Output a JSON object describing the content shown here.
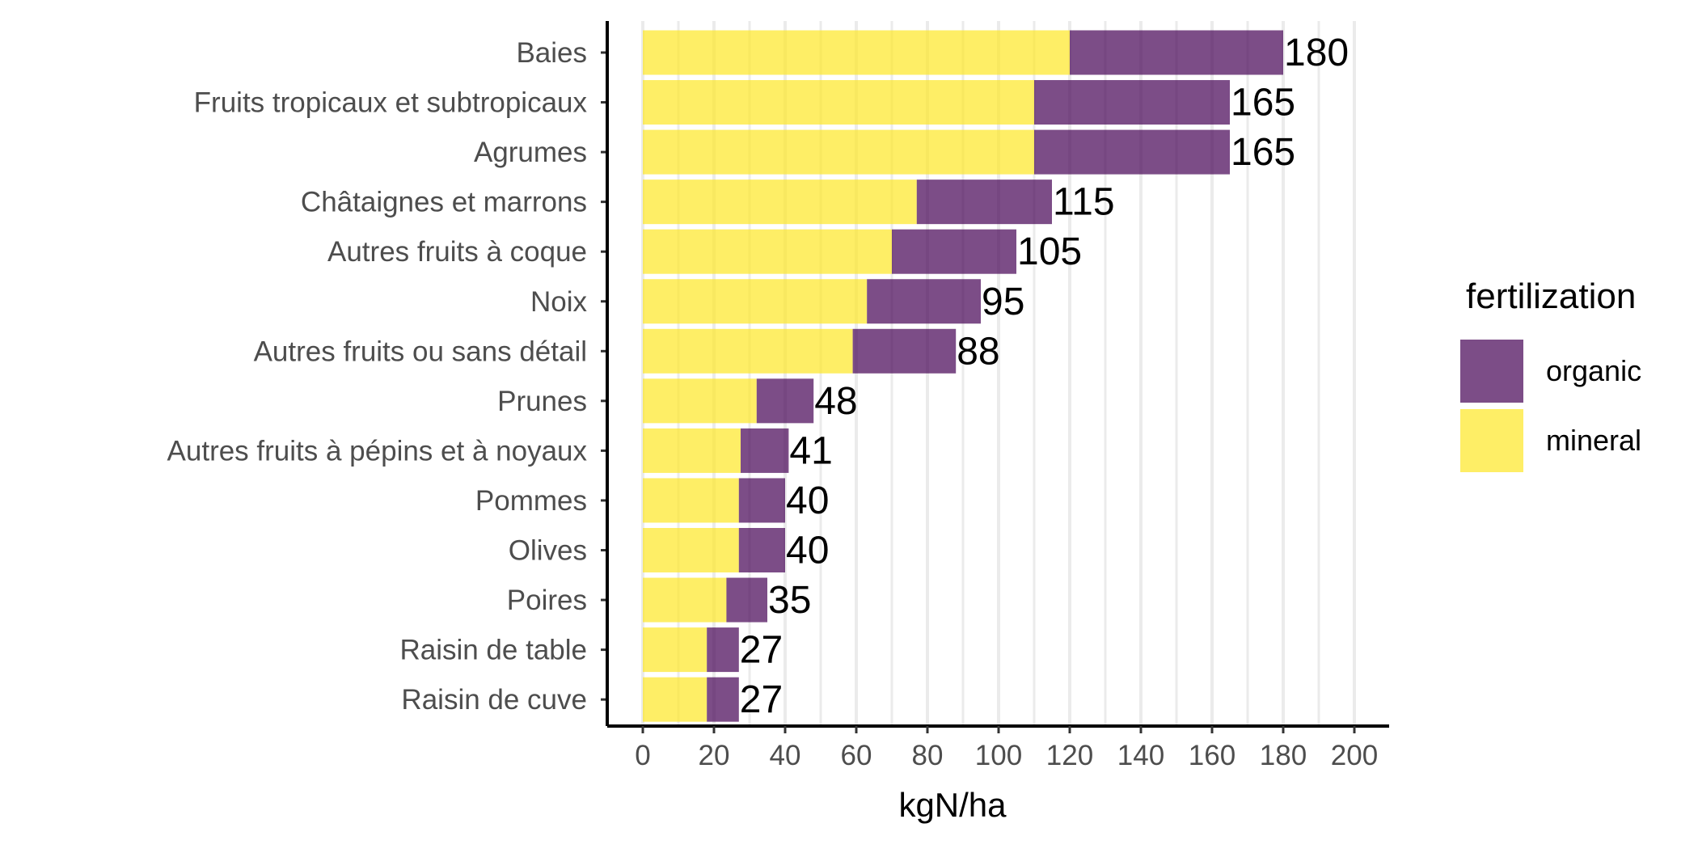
{
  "chart_data": {
    "type": "bar",
    "orientation": "horizontal",
    "stacked": true,
    "categories": [
      "Baies",
      "Fruits tropicaux et subtropicaux",
      "Agrumes",
      "Châtaignes et marrons",
      "Autres fruits à coque",
      "Noix",
      "Autres fruits ou sans détail",
      "Prunes",
      "Autres fruits à pépins et à noyaux",
      "Pommes",
      "Olives",
      "Poires",
      "Raisin de table",
      "Raisin de cuve"
    ],
    "series": [
      {
        "name": "mineral",
        "color": "#FDE725",
        "values": [
          120,
          110,
          110,
          77,
          70,
          63,
          59,
          32,
          27.5,
          27,
          27,
          23.5,
          18,
          18
        ]
      },
      {
        "name": "organic",
        "color": "#440154",
        "values": [
          60,
          55,
          55,
          38,
          35,
          32,
          29,
          16,
          13.5,
          13,
          13,
          11.5,
          9,
          9
        ]
      }
    ],
    "totals": [
      "180",
      "165",
      "165",
      "115",
      "105",
      "95",
      "88",
      "48",
      "41",
      "40",
      "40",
      "35",
      "27",
      "27"
    ],
    "xlabel": "kgN/ha",
    "ylabel": "",
    "xlim": [
      0,
      200
    ],
    "x_ticks": [
      "0",
      "20",
      "40",
      "60",
      "80",
      "100",
      "120",
      "140",
      "160",
      "180",
      "200"
    ],
    "bar_opacity": 0.7,
    "grid": "vertical",
    "legend": {
      "title": "fertilization",
      "placement": "right",
      "entries": [
        "organic",
        "mineral"
      ]
    }
  }
}
